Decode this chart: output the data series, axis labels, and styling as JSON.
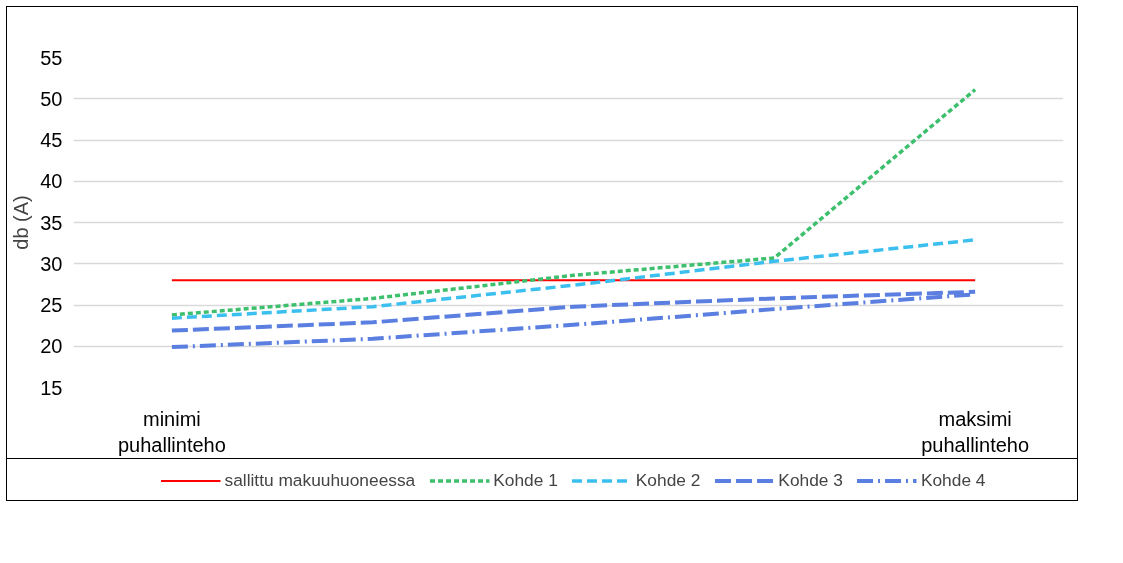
{
  "chart_data": {
    "type": "line",
    "ylabel": "db (A)",
    "categories": [
      "minimi puhallinteho",
      null,
      null,
      null,
      "maksimi puhallinteho"
    ],
    "series": [
      {
        "name": "sallittu makuuhuoneessa",
        "color": "#ff0000",
        "line_style": "solid",
        "values": [
          28,
          28,
          28,
          28,
          28
        ]
      },
      {
        "name": "Kohde 1",
        "color": "#3dbf6e",
        "line_style": "dotted",
        "values": [
          23.8,
          25.8,
          28.6,
          30.7,
          51.1
        ]
      },
      {
        "name": "Kohde 2",
        "color": "#3bbfef",
        "line_style": "dashed",
        "values": [
          23.4,
          24.8,
          27.4,
          30.3,
          32.9
        ]
      },
      {
        "name": "Kohde 3",
        "color": "#5b7fe0",
        "line_style": "longdash",
        "values": [
          21.9,
          22.9,
          24.8,
          25.8,
          26.6
        ]
      },
      {
        "name": "Kohde 4",
        "color": "#5b7fe0",
        "line_style": "dashdot",
        "values": [
          19.9,
          20.9,
          22.6,
          24.5,
          26.3
        ]
      }
    ],
    "ylim": [
      15,
      55
    ],
    "yticks": [
      15,
      20,
      25,
      30,
      35,
      40,
      45,
      50,
      55
    ],
    "grid": "y",
    "legend": "bottom",
    "marker": "none"
  }
}
